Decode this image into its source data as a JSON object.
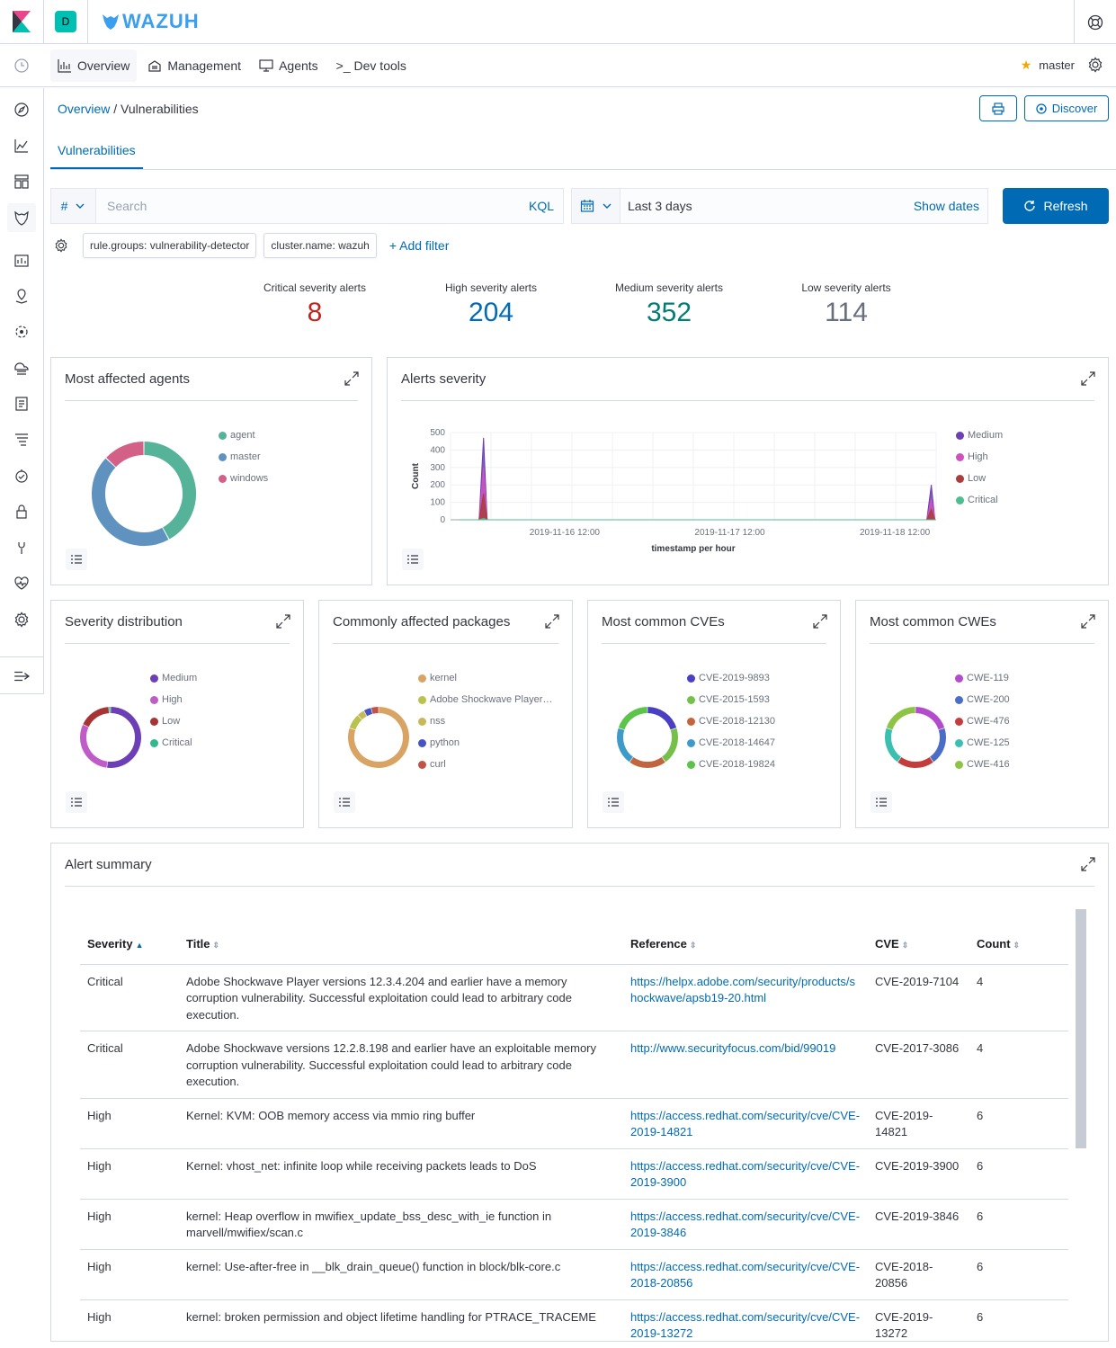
{
  "header": {
    "space_initial": "D",
    "brand": "WAZUH"
  },
  "nav": {
    "tabs": [
      "Overview",
      "Management",
      "Agents",
      ">_ Dev tools"
    ],
    "instance": "master"
  },
  "breadcrumb": {
    "parent": "Overview",
    "separator": " / ",
    "current": "Vulnerabilities"
  },
  "actions": {
    "discover": "Discover"
  },
  "subtab": "Vulnerabilities",
  "search": {
    "language_selector": "#",
    "placeholder": "Search",
    "language": "KQL"
  },
  "time": {
    "range": "Last 3 days",
    "show_dates": "Show dates",
    "refresh": "Refresh"
  },
  "filters": {
    "pills": [
      "rule.groups: vulnerability-detector",
      "cluster.name: wazuh"
    ],
    "add": "+ Add filter"
  },
  "metrics": [
    {
      "label": "Critical severity alerts",
      "value": "8",
      "color": "#bd271e"
    },
    {
      "label": "High severity alerts",
      "value": "204",
      "color": "#006bb4"
    },
    {
      "label": "Medium severity alerts",
      "value": "352",
      "color": "#017d73"
    },
    {
      "label": "Low severity alerts",
      "value": "114",
      "color": "#69707d"
    }
  ],
  "panels": {
    "affected_agents": {
      "title": "Most affected agents",
      "legend": [
        "agent",
        "master",
        "windows"
      ],
      "colors": [
        "#54b399",
        "#6092c0",
        "#d36086"
      ],
      "values": [
        42,
        45,
        13
      ]
    },
    "alerts_severity": {
      "title": "Alerts severity",
      "legend": [
        "Medium",
        "High",
        "Low",
        "Critical"
      ],
      "colors": [
        "#6c3fb6",
        "#d050c0",
        "#aa3d3d",
        "#4ebd8f"
      ]
    },
    "severity_dist": {
      "title": "Severity distribution",
      "legend": [
        "Medium",
        "High",
        "Low",
        "Critical"
      ],
      "colors": [
        "#6c3fb6",
        "#c05cc8",
        "#a63434",
        "#2fb98c"
      ],
      "values": [
        52,
        30,
        17,
        1
      ]
    },
    "packages": {
      "title": "Commonly affected packages",
      "legend": [
        "kernel",
        "Adobe Shockwave Player…",
        "nss",
        "python",
        "curl"
      ],
      "colors": [
        "#d9a463",
        "#b9c24a",
        "#c8b85a",
        "#4454c5",
        "#c05345"
      ],
      "values": [
        80,
        8,
        4,
        4,
        4
      ]
    },
    "cves": {
      "title": "Most common CVEs",
      "legend": [
        "CVE-2019-9893",
        "CVE-2015-1593",
        "CVE-2018-12130",
        "CVE-2018-14647",
        "CVE-2018-19824"
      ],
      "colors": [
        "#4a3fc2",
        "#74c04b",
        "#c1653e",
        "#3e9bc9",
        "#5cc44b"
      ],
      "values": [
        20,
        20,
        20,
        20,
        20
      ]
    },
    "cwes": {
      "title": "Most common CWEs",
      "legend": [
        "CWE-119",
        "CWE-200",
        "CWE-476",
        "CWE-125",
        "CWE-416"
      ],
      "colors": [
        "#b24ccc",
        "#4a6ec6",
        "#c43d3d",
        "#3abfb0",
        "#8ec445"
      ],
      "values": [
        20,
        20,
        20,
        20,
        20
      ]
    }
  },
  "chart_data": {
    "type": "area",
    "title": "Alerts severity",
    "xlabel": "timestamp per hour",
    "ylabel": "Count",
    "ylim": [
      0,
      500
    ],
    "yticks": [
      "0",
      "100",
      "200",
      "300",
      "400",
      "500"
    ],
    "xticks": [
      "2019-11-16 12:00",
      "2019-11-17 12:00",
      "2019-11-18 12:00"
    ],
    "series": [
      {
        "name": "Medium",
        "peaks": [
          470,
          200
        ]
      },
      {
        "name": "High",
        "peaks": [
          300,
          120
        ]
      },
      {
        "name": "Low",
        "peaks": [
          150,
          60
        ]
      },
      {
        "name": "Critical",
        "peaks": [
          8,
          0
        ]
      }
    ]
  },
  "alert_summary": {
    "title": "Alert summary",
    "columns": [
      "Severity",
      "Title",
      "Reference",
      "CVE",
      "Count"
    ],
    "rows": [
      {
        "severity": "Critical",
        "title": "Adobe Shockwave Player versions 12.3.4.204 and earlier have a memory corruption vulnerability. Successful exploitation could lead to arbitrary code execution.",
        "reference": "https://helpx.adobe.com/security/products/shockwave/apsb19-20.html",
        "cve": "CVE-2019-7104",
        "count": "4"
      },
      {
        "severity": "Critical",
        "title": "Adobe Shockwave versions 12.2.8.198 and earlier have an exploitable memory corruption vulnerability. Successful exploitation could lead to arbitrary code execution.",
        "reference": "http://www.securityfocus.com/bid/99019",
        "cve": "CVE-2017-3086",
        "count": "4"
      },
      {
        "severity": "High",
        "title": "Kernel: KVM: OOB memory access via mmio ring buffer",
        "reference": "https://access.redhat.com/security/cve/CVE-2019-14821",
        "cve": "CVE-2019-14821",
        "count": "6"
      },
      {
        "severity": "High",
        "title": "Kernel: vhost_net: infinite loop while receiving packets leads to DoS",
        "reference": "https://access.redhat.com/security/cve/CVE-2019-3900",
        "cve": "CVE-2019-3900",
        "count": "6"
      },
      {
        "severity": "High",
        "title": "kernel: Heap overflow in mwifiex_update_bss_desc_with_ie function in marvell/mwifiex/scan.c",
        "reference": "https://access.redhat.com/security/cve/CVE-2019-3846",
        "cve": "CVE-2019-3846",
        "count": "6"
      },
      {
        "severity": "High",
        "title": "kernel: Use-after-free in __blk_drain_queue() function in block/blk-core.c",
        "reference": "https://access.redhat.com/security/cve/CVE-2018-20856",
        "cve": "CVE-2018-20856",
        "count": "6"
      },
      {
        "severity": "High",
        "title": "kernel: broken permission and object lifetime handling for PTRACE_TRACEME",
        "reference": "https://access.redhat.com/security/cve/CVE-2019-13272",
        "cve": "CVE-2019-13272",
        "count": "6"
      }
    ]
  }
}
